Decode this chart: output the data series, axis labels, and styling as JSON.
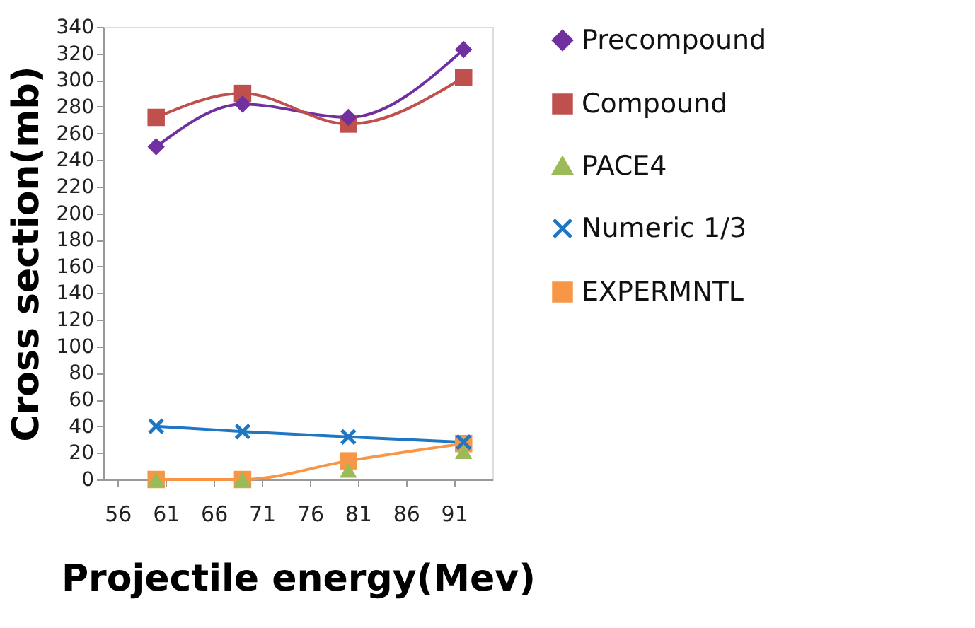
{
  "chart_data": {
    "type": "line",
    "xlabel": "Projectile energy(Mev)",
    "ylabel": "Cross section(mb)",
    "x": [
      60,
      69,
      80,
      92
    ],
    "series": [
      {
        "name": "Precompound",
        "color": "#7030a0",
        "values": [
          250,
          282,
          272,
          323
        ],
        "marker": "diamond"
      },
      {
        "name": "Compound",
        "color": "#c0504d",
        "values": [
          272,
          290,
          267,
          302
        ],
        "marker": "square"
      },
      {
        "name": "PACE4",
        "color": "#9bbb59",
        "values": [
          0,
          0,
          7,
          21
        ],
        "type": "scatter",
        "marker": "triangle"
      },
      {
        "name": "Numeric 1/3",
        "color": "#1f77c4",
        "values": [
          40,
          36,
          32,
          28
        ],
        "marker": "cross"
      },
      {
        "name": "EXPERMNTL",
        "color": "#f79646",
        "values": [
          0,
          0,
          14,
          27
        ],
        "marker": "square"
      }
    ],
    "xlim": [
      54.5,
      95
    ],
    "xticks": [
      56,
      61,
      66,
      71,
      76,
      81,
      86,
      91
    ],
    "ylim": [
      0,
      340
    ],
    "yticks": [
      0,
      20,
      40,
      60,
      80,
      100,
      120,
      140,
      160,
      180,
      200,
      220,
      240,
      260,
      280,
      300,
      320,
      340
    ],
    "grid": false,
    "legend": "right"
  }
}
